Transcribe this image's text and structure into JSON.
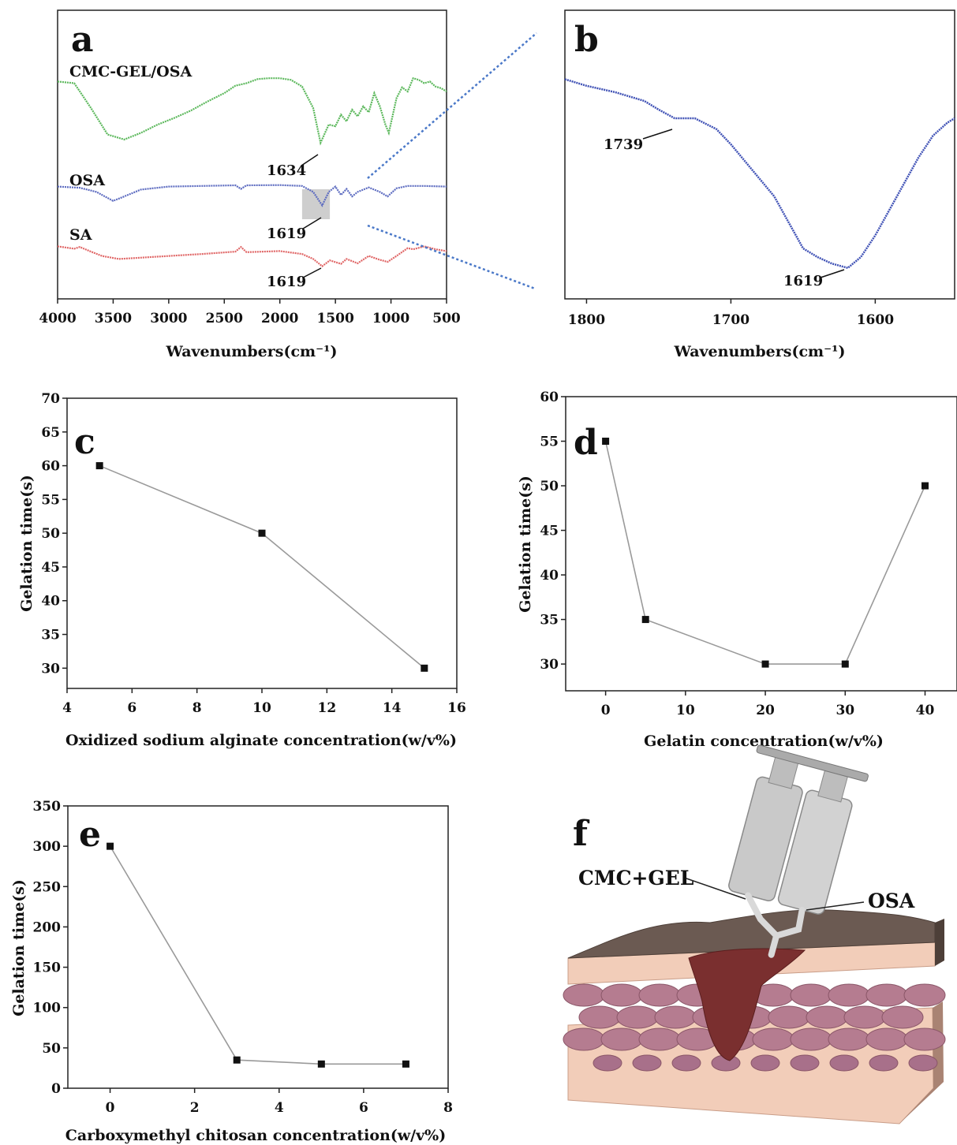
{
  "panels": {
    "a": "a",
    "b": "b",
    "c": "c",
    "d": "d",
    "e": "e",
    "f": "f"
  },
  "chart_data": [
    {
      "id": "a",
      "type": "line",
      "title": "",
      "xlabel": "Wavenumbers(cm⁻¹)",
      "ylabel": "",
      "xlim": [
        4000,
        500
      ],
      "x_reversed": true,
      "xticks": [
        4000,
        3500,
        3000,
        2500,
        2000,
        1500,
        1000,
        500
      ],
      "series": [
        {
          "name": "CMC-GEL/OSA",
          "color": "#5cb85c",
          "x": [
            4000,
            3850,
            3700,
            3550,
            3400,
            3250,
            3100,
            2950,
            2800,
            2650,
            2500,
            2400,
            2300,
            2200,
            2100,
            2000,
            1900,
            1800,
            1700,
            1634,
            1560,
            1500,
            1450,
            1400,
            1350,
            1300,
            1250,
            1200,
            1150,
            1100,
            1050,
            1020,
            950,
            900,
            850,
            800,
            750,
            700,
            650,
            600,
            550,
            500
          ],
          "y": [
            0.92,
            0.9,
            0.6,
            0.28,
            0.22,
            0.3,
            0.4,
            0.48,
            0.57,
            0.68,
            0.78,
            0.87,
            0.9,
            0.95,
            0.96,
            0.96,
            0.94,
            0.86,
            0.6,
            0.18,
            0.4,
            0.38,
            0.52,
            0.44,
            0.58,
            0.5,
            0.62,
            0.55,
            0.78,
            0.62,
            0.4,
            0.3,
            0.72,
            0.85,
            0.8,
            0.96,
            0.94,
            0.9,
            0.92,
            0.86,
            0.84,
            0.8
          ]
        },
        {
          "name": "OSA",
          "color": "#5c6bc0",
          "x": [
            4000,
            3800,
            3650,
            3500,
            3400,
            3250,
            3000,
            2700,
            2400,
            2350,
            2300,
            2000,
            1800,
            1700,
            1619,
            1560,
            1500,
            1450,
            1400,
            1350,
            1300,
            1200,
            1100,
            1030,
            950,
            850,
            700,
            500
          ],
          "y": [
            0.88,
            0.84,
            0.7,
            0.4,
            0.55,
            0.78,
            0.88,
            0.9,
            0.92,
            0.8,
            0.92,
            0.93,
            0.9,
            0.7,
            0.25,
            0.7,
            0.88,
            0.6,
            0.8,
            0.55,
            0.7,
            0.85,
            0.7,
            0.55,
            0.82,
            0.9,
            0.9,
            0.88
          ]
        },
        {
          "name": "SA",
          "color": "#e06666",
          "x": [
            4000,
            3850,
            3800,
            3700,
            3600,
            3450,
            3300,
            3000,
            2700,
            2400,
            2350,
            2300,
            2000,
            1800,
            1700,
            1619,
            1550,
            1450,
            1400,
            1300,
            1200,
            1100,
            1030,
            950,
            850,
            800,
            700,
            600,
            500
          ],
          "y": [
            0.88,
            0.8,
            0.86,
            0.7,
            0.55,
            0.45,
            0.48,
            0.55,
            0.62,
            0.7,
            0.86,
            0.68,
            0.72,
            0.62,
            0.45,
            0.2,
            0.4,
            0.28,
            0.45,
            0.3,
            0.55,
            0.42,
            0.35,
            0.55,
            0.82,
            0.78,
            0.88,
            0.78,
            0.72
          ]
        }
      ],
      "annotations": [
        {
          "text": "1634",
          "x": 1634,
          "series": "CMC-GEL/OSA"
        },
        {
          "text": "1619",
          "x": 1619,
          "series": "OSA"
        },
        {
          "text": "1619",
          "x": 1619,
          "series": "SA"
        }
      ],
      "highlight_region": [
        1800,
        1550
      ]
    },
    {
      "id": "b",
      "type": "line",
      "title": "",
      "xlabel": "Wavenumbers(cm⁻¹)",
      "ylabel": "",
      "xlim": [
        1815,
        1545
      ],
      "x_reversed": true,
      "xticks": [
        1800,
        1700,
        1600
      ],
      "series": [
        {
          "name": "",
          "color": "#3f51b5",
          "x": [
            1815,
            1800,
            1780,
            1760,
            1750,
            1739,
            1725,
            1710,
            1700,
            1690,
            1680,
            1670,
            1660,
            1650,
            1640,
            1630,
            1619,
            1610,
            1600,
            1590,
            1580,
            1570,
            1560,
            1550,
            1545
          ],
          "y": [
            0.98,
            0.95,
            0.92,
            0.88,
            0.84,
            0.8,
            0.8,
            0.75,
            0.68,
            0.6,
            0.52,
            0.44,
            0.32,
            0.2,
            0.16,
            0.13,
            0.11,
            0.16,
            0.26,
            0.38,
            0.5,
            0.62,
            0.72,
            0.78,
            0.8
          ]
        }
      ],
      "annotations": [
        {
          "text": "1739",
          "x": 1739
        },
        {
          "text": "1619",
          "x": 1619
        }
      ]
    },
    {
      "id": "c",
      "type": "line",
      "xlabel": "Oxidized sodium alginate concentration(w/v%)",
      "ylabel": "Gelation time(s)",
      "xlim": [
        4,
        16
      ],
      "ylim": [
        27,
        70
      ],
      "xticks": [
        4,
        6,
        8,
        10,
        12,
        14,
        16
      ],
      "yticks": [
        30,
        35,
        40,
        45,
        50,
        55,
        60,
        65,
        70
      ],
      "x": [
        5,
        10,
        15
      ],
      "y": [
        60,
        50,
        30
      ]
    },
    {
      "id": "d",
      "type": "line",
      "xlabel": "Gelatin concentration(w/v%)",
      "ylabel": "Gelation time(s)",
      "xlim": [
        -5,
        44
      ],
      "ylim": [
        27,
        60
      ],
      "xticks": [
        0,
        10,
        20,
        30,
        40
      ],
      "yticks": [
        30,
        35,
        40,
        45,
        50,
        55,
        60
      ],
      "x": [
        0,
        5,
        20,
        30,
        40
      ],
      "y": [
        55,
        35,
        30,
        30,
        50
      ]
    },
    {
      "id": "e",
      "type": "line",
      "xlabel": "Carboxymethyl chitosan concentration(w/v%)",
      "ylabel": "Gelation time(s)",
      "xlim": [
        -1,
        8
      ],
      "ylim": [
        0,
        350
      ],
      "xticks": [
        0,
        2,
        4,
        6,
        8
      ],
      "yticks": [
        0,
        50,
        100,
        150,
        200,
        250,
        300,
        350
      ],
      "x": [
        0,
        3,
        5,
        7
      ],
      "y": [
        300,
        35,
        30,
        30
      ]
    }
  ],
  "illustration_f": {
    "label_left": "CMC+GEL",
    "label_right": "OSA"
  },
  "colors": {
    "skin_top": "#6b5a52",
    "skin_layer": "#f2cdb9",
    "cells": "#b57c90",
    "gel": "#7a2f2f",
    "syringe": "#c9c9c9",
    "dotted_connector": "#4a78c8"
  }
}
